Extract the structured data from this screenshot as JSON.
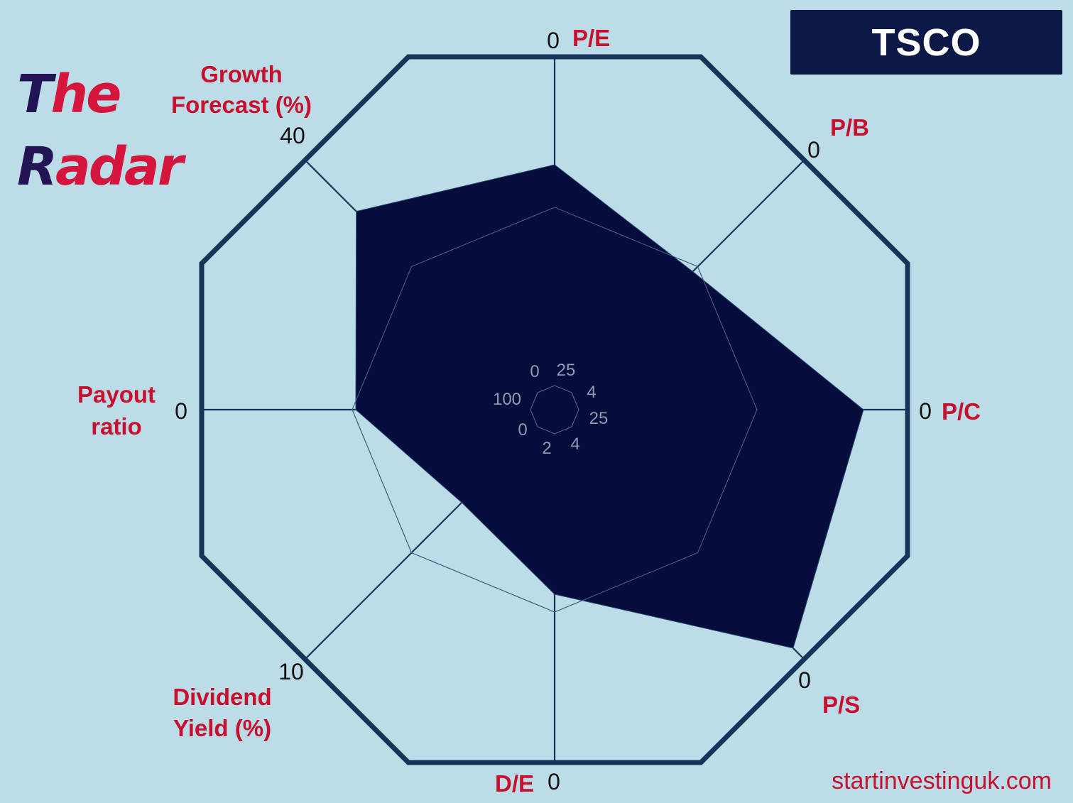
{
  "brand": {
    "the_dark": "T",
    "the_red": "he",
    "radar_dark": "R",
    "radar_red": "adar"
  },
  "ticker": "TSCO",
  "website": "startinvestinguk.com",
  "colors": {
    "background": "#bcdde7",
    "octagon_frame": "#173458",
    "axis_line": "#173458",
    "fill": "#060c3c",
    "label": "#c8102e",
    "tick": "#111111",
    "center_tick": "#8f9aae"
  },
  "chart_data": {
    "type": "radar",
    "axes": [
      {
        "label": "P/E",
        "outer_tick": "0",
        "center_tick": "25",
        "value": 0.69
      },
      {
        "label": "P/B",
        "outer_tick": "0",
        "center_tick": "4",
        "value": 0.55
      },
      {
        "label": "P/C",
        "outer_tick": "0",
        "center_tick": "25",
        "value": 0.87
      },
      {
        "label": "P/S",
        "outer_tick": "0",
        "center_tick": "4",
        "value": 0.95
      },
      {
        "label": "D/E",
        "outer_tick": "0",
        "center_tick": "2",
        "value": 0.52
      },
      {
        "label": "Dividend Yield (%)",
        "outer_tick": "10",
        "center_tick": "0",
        "value": 0.37
      },
      {
        "label": "Payout ratio",
        "outer_tick": "0",
        "center_tick": "100",
        "value": 0.56
      },
      {
        "label": "Growth Forecast (%)",
        "outer_tick": "40",
        "center_tick": "0",
        "value": 0.79
      }
    ],
    "reference_ring": 0.57,
    "grid": true
  }
}
